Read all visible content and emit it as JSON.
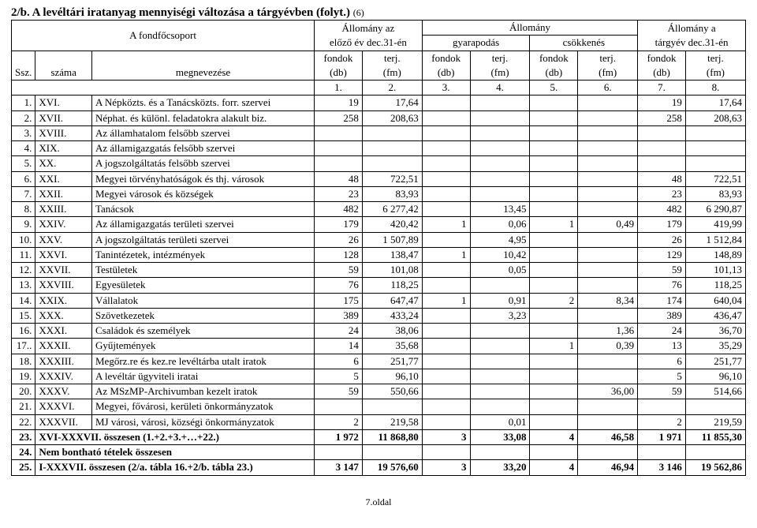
{
  "title": "2/b. A levéltári iratanyag mennyiségi változása a tárgyévben (folyt.)",
  "title_suffix": "(6)",
  "header": {
    "fondfocsoport": "A fondfőcsoport",
    "allomany_az": "Állomány az",
    "elozo_ev": "előző év dec.31-én",
    "allomany": "Állomány",
    "gyarapodas": "gyarapodás",
    "csokkenes": "csökkenés",
    "allomany_a": "Állomány a",
    "targyev": "tárgyév dec.31-én",
    "ssz": "Ssz.",
    "szama": "száma",
    "megnevezese": "megnevezése",
    "fondok": "fondok",
    "db": "(db)",
    "terj": "terj.",
    "fm": "(fm)",
    "nums": [
      "1.",
      "2.",
      "3.",
      "4.",
      "5.",
      "6.",
      "7.",
      "8."
    ]
  },
  "rows": [
    {
      "ssz": "1.",
      "szama": "XVI.",
      "megn": "A Népközts. és a Tanácsközts. forr. szervei",
      "c": [
        "19",
        "17,64",
        "",
        "",
        "",
        "",
        "19",
        "17,64"
      ]
    },
    {
      "ssz": "2.",
      "szama": "XVII.",
      "megn": "Néphat. és különl. feladatokra alakult biz.",
      "c": [
        "258",
        "208,63",
        "",
        "",
        "",
        "",
        "258",
        "208,63"
      ]
    },
    {
      "ssz": "3.",
      "szama": "XVIII.",
      "megn": "Az államhatalom felsőbb szervei",
      "c": [
        "",
        "",
        "",
        "",
        "",
        "",
        "",
        ""
      ]
    },
    {
      "ssz": "4.",
      "szama": "XIX.",
      "megn": "Az államigazgatás felsőbb szervei",
      "c": [
        "",
        "",
        "",
        "",
        "",
        "",
        "",
        ""
      ]
    },
    {
      "ssz": "5.",
      "szama": "XX.",
      "megn": "A jogszolgáltatás felsőbb szervei",
      "c": [
        "",
        "",
        "",
        "",
        "",
        "",
        "",
        ""
      ]
    },
    {
      "ssz": "6.",
      "szama": "XXI.",
      "megn": "Megyei törvényhatóságok és thj. városok",
      "c": [
        "48",
        "722,51",
        "",
        "",
        "",
        "",
        "48",
        "722,51"
      ]
    },
    {
      "ssz": "7.",
      "szama": "XXII.",
      "megn": "Megyei városok és községek",
      "c": [
        "23",
        "83,93",
        "",
        "",
        "",
        "",
        "23",
        "83,93"
      ]
    },
    {
      "ssz": "8.",
      "szama": "XXIII.",
      "megn": "Tanácsok",
      "c": [
        "482",
        "6 277,42",
        "",
        "13,45",
        "",
        "",
        "482",
        "6 290,87"
      ]
    },
    {
      "ssz": "9.",
      "szama": "XXIV.",
      "megn": "Az államigazgatás területi szervei",
      "c": [
        "179",
        "420,42",
        "1",
        "0,06",
        "1",
        "0,49",
        "179",
        "419,99"
      ]
    },
    {
      "ssz": "10.",
      "szama": "XXV.",
      "megn": "A jogszolgáltatás területi szervei",
      "c": [
        "26",
        "1 507,89",
        "",
        "4,95",
        "",
        "",
        "26",
        "1 512,84"
      ]
    },
    {
      "ssz": "11.",
      "szama": "XXVI.",
      "megn": "Tanintézetek, intézmények",
      "c": [
        "128",
        "138,47",
        "1",
        "10,42",
        "",
        "",
        "129",
        "148,89"
      ]
    },
    {
      "ssz": "12.",
      "szama": "XXVII.",
      "megn": "Testületek",
      "c": [
        "59",
        "101,08",
        "",
        "0,05",
        "",
        "",
        "59",
        "101,13"
      ]
    },
    {
      "ssz": "13.",
      "szama": "XXVIII.",
      "megn": "Egyesületek",
      "c": [
        "76",
        "118,25",
        "",
        "",
        "",
        "",
        "76",
        "118,25"
      ]
    },
    {
      "ssz": "14.",
      "szama": "XXIX.",
      "megn": "Vállalatok",
      "c": [
        "175",
        "647,47",
        "1",
        "0,91",
        "2",
        "8,34",
        "174",
        "640,04"
      ]
    },
    {
      "ssz": "15.",
      "szama": "XXX.",
      "megn": "Szövetkezetek",
      "c": [
        "389",
        "433,24",
        "",
        "3,23",
        "",
        "",
        "389",
        "436,47"
      ]
    },
    {
      "ssz": "16.",
      "szama": "XXXI.",
      "megn": "Családok és személyek",
      "c": [
        "24",
        "38,06",
        "",
        "",
        "",
        "1,36",
        "24",
        "36,70"
      ]
    },
    {
      "ssz": "17..",
      "szama": "XXXII.",
      "megn": "Gyűjtemények",
      "c": [
        "14",
        "35,68",
        "",
        "",
        "1",
        "0,39",
        "13",
        "35,29"
      ]
    },
    {
      "ssz": "18.",
      "szama": "XXXIII.",
      "megn": "Megőrz.re és kez.re levéltárba utalt iratok",
      "c": [
        "6",
        "251,77",
        "",
        "",
        "",
        "",
        "6",
        "251,77"
      ]
    },
    {
      "ssz": "19.",
      "szama": "XXXIV.",
      "megn": "A levéltár ügyviteli iratai",
      "c": [
        "5",
        "96,10",
        "",
        "",
        "",
        "",
        "5",
        "96,10"
      ]
    },
    {
      "ssz": "20.",
      "szama": "XXXV.",
      "megn": "Az MSzMP-Archivumban kezelt iratok",
      "c": [
        "59",
        "550,66",
        "",
        "",
        "",
        "36,00",
        "59",
        "514,66"
      ]
    },
    {
      "ssz": "21.",
      "szama": "XXXVI.",
      "megn": "Megyei, fővárosi, kerületi önkormányzatok",
      "c": [
        "",
        "",
        "",
        "",
        "",
        "",
        "",
        ""
      ]
    },
    {
      "ssz": "22.",
      "szama": "XXXVII.",
      "megn": "MJ városi, városi, községi önkormányzatok",
      "c": [
        "2",
        "219,58",
        "",
        "0,01",
        "",
        "",
        "2",
        "219,59"
      ]
    },
    {
      "ssz": "23.",
      "szama": "",
      "megn": "XVI-XXXVII. összesen (1.+2.+3.+…+22.)",
      "c": [
        "1 972",
        "11 868,80",
        "3",
        "33,08",
        "4",
        "46,58",
        "1 971",
        "11 855,30"
      ],
      "bold": true,
      "szama_in_megn": true
    },
    {
      "ssz": "24.",
      "szama": "",
      "megn": "Nem bontható tételek összesen",
      "c": [
        "",
        "",
        "",
        "",
        "",
        "",
        "",
        ""
      ],
      "bold": true,
      "szama_in_megn": true
    },
    {
      "ssz": "25.",
      "szama": "",
      "megn": "I-XXXVII. összesen (2/a. tábla 16.+2/b. tábla 23.)",
      "c": [
        "3 147",
        "19 576,60",
        "3",
        "33,20",
        "4",
        "46,94",
        "3 146",
        "19 562,86"
      ],
      "bold": true,
      "szama_in_megn": true
    }
  ],
  "footer": "7.oldal"
}
